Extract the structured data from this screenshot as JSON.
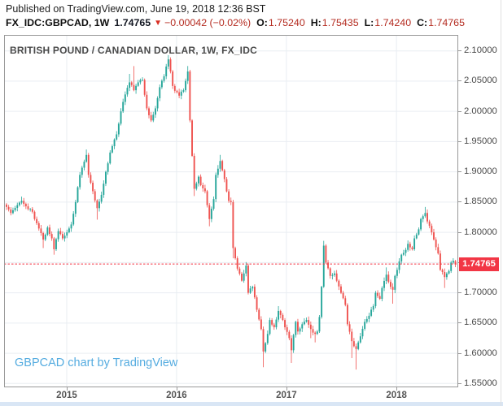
{
  "published_line": "Published on TradingView.com, June 19, 2018 12:36 BST",
  "header": {
    "symbol": "FX_IDC:GBPCAD, 1W",
    "price": "1.74765",
    "direction": "down",
    "change": "−0.00042 (−0.02%)",
    "open": {
      "label": "O:",
      "value": "1.75240"
    },
    "high": {
      "label": "H:",
      "value": "1.75435"
    },
    "low": {
      "label": "L:",
      "value": "1.74240"
    },
    "close": {
      "label": "C:",
      "value": "1.74765"
    }
  },
  "chart": {
    "title": "BRITISH POUND / CANADIAN DOLLAR, 1W, FX_IDC",
    "watermark": "GBPCAD chart by TradingView",
    "price_label": "1.74765",
    "colors": {
      "up": "#26a69a",
      "down": "#ef5350",
      "grid": "#e9edf2",
      "frame": "#999999",
      "price_line": "#f23645",
      "axis_text": "#4a4a4a",
      "watermark": "#55ace0"
    }
  },
  "chart_data": {
    "type": "candlestick",
    "title": "BRITISH POUND / CANADIAN DOLLAR, 1W, FX_IDC",
    "symbol": "GBPCAD",
    "timeframe": "1W",
    "x_range": {
      "start": "2014-06",
      "end": "2018-06",
      "weeks": 209
    },
    "x_ticks": [
      {
        "label": "2015",
        "week": 27.9
      },
      {
        "label": "2016",
        "week": 78.8
      },
      {
        "label": "2017",
        "week": 129.7
      },
      {
        "label": "2018",
        "week": 180.7
      }
    ],
    "y_ticks": [
      {
        "label": "2.10000",
        "value": 2.1
      },
      {
        "label": "2.05000",
        "value": 2.05
      },
      {
        "label": "2.00000",
        "value": 2.0
      },
      {
        "label": "1.95000",
        "value": 1.95
      },
      {
        "label": "1.90000",
        "value": 1.9
      },
      {
        "label": "1.85000",
        "value": 1.85
      },
      {
        "label": "1.80000",
        "value": 1.8
      },
      {
        "label": "1.75000",
        "value": 1.75
      },
      {
        "label": "1.70000",
        "value": 1.7
      },
      {
        "label": "1.65000",
        "value": 1.65
      },
      {
        "label": "1.60000",
        "value": 1.6
      },
      {
        "label": "1.55000",
        "value": 1.55
      }
    ],
    "ylim": [
      1.544,
      2.126
    ],
    "grid": true,
    "current_price": 1.74765,
    "current_price_label": "1.74765",
    "last_candle": {
      "open": 1.7524,
      "high": 1.75435,
      "low": 1.7424,
      "close": 1.74765
    },
    "anchors_legend": "weekly close waypoints read from chart: [week_index, close, wick_low, wick_high]",
    "anchors": [
      [
        0,
        1.842,
        null,
        null
      ],
      [
        2,
        1.832,
        null,
        null
      ],
      [
        5,
        1.845,
        null,
        null
      ],
      [
        7,
        1.852,
        null,
        1.859
      ],
      [
        9,
        1.843,
        null,
        null
      ],
      [
        12,
        1.834,
        null,
        null
      ],
      [
        14,
        1.815,
        null,
        null
      ],
      [
        17,
        1.788,
        1.774,
        null
      ],
      [
        19,
        1.808,
        null,
        null
      ],
      [
        21,
        1.79,
        null,
        null
      ],
      [
        22,
        1.772,
        1.763,
        null
      ],
      [
        24,
        1.802,
        null,
        null
      ],
      [
        26,
        1.79,
        null,
        null
      ],
      [
        28,
        1.8,
        null,
        null
      ],
      [
        30,
        1.813,
        null,
        null
      ],
      [
        32,
        1.85,
        null,
        null
      ],
      [
        34,
        1.895,
        null,
        null
      ],
      [
        37,
        1.928,
        null,
        1.937
      ],
      [
        38,
        1.895,
        null,
        null
      ],
      [
        40,
        1.868,
        null,
        null
      ],
      [
        42,
        1.84,
        1.821,
        null
      ],
      [
        44,
        1.862,
        null,
        null
      ],
      [
        46,
        1.9,
        null,
        null
      ],
      [
        48,
        1.932,
        null,
        null
      ],
      [
        51,
        1.962,
        null,
        null
      ],
      [
        53,
        2.0,
        null,
        null
      ],
      [
        55,
        2.028,
        null,
        null
      ],
      [
        57,
        2.048,
        null,
        2.062
      ],
      [
        59,
        2.035,
        null,
        2.075
      ],
      [
        61,
        2.048,
        null,
        null
      ],
      [
        63,
        2.052,
        null,
        null
      ],
      [
        65,
        2.005,
        null,
        null
      ],
      [
        67,
        1.985,
        null,
        null
      ],
      [
        69,
        2.005,
        null,
        null
      ],
      [
        71,
        2.04,
        null,
        null
      ],
      [
        73,
        2.058,
        null,
        null
      ],
      [
        75,
        2.086,
        null,
        2.093
      ],
      [
        77,
        2.042,
        null,
        null
      ],
      [
        78,
        2.034,
        null,
        null
      ],
      [
        80,
        2.026,
        null,
        null
      ],
      [
        82,
        2.035,
        null,
        null
      ],
      [
        84,
        2.066,
        null,
        2.075
      ],
      [
        85,
        1.985,
        null,
        null
      ],
      [
        87,
        1.872,
        1.86,
        null
      ],
      [
        89,
        1.892,
        null,
        null
      ],
      [
        90,
        1.878,
        null,
        null
      ],
      [
        92,
        1.868,
        null,
        null
      ],
      [
        94,
        1.822,
        1.81,
        null
      ],
      [
        96,
        1.855,
        null,
        null
      ],
      [
        97,
        1.895,
        null,
        null
      ],
      [
        99,
        1.918,
        null,
        1.928
      ],
      [
        101,
        1.888,
        null,
        null
      ],
      [
        103,
        1.852,
        null,
        null
      ],
      [
        104,
        1.85,
        null,
        null
      ],
      [
        105,
        1.774,
        1.757,
        null
      ],
      [
        107,
        1.74,
        null,
        null
      ],
      [
        109,
        1.72,
        null,
        null
      ],
      [
        111,
        1.745,
        null,
        null
      ],
      [
        112,
        1.7,
        null,
        null
      ],
      [
        114,
        1.71,
        null,
        null
      ],
      [
        116,
        1.672,
        null,
        null
      ],
      [
        118,
        1.64,
        null,
        null
      ],
      [
        119,
        1.603,
        1.577,
        null
      ],
      [
        121,
        1.632,
        null,
        null
      ],
      [
        122,
        1.655,
        null,
        null
      ],
      [
        124,
        1.643,
        null,
        null
      ],
      [
        126,
        1.67,
        null,
        1.678
      ],
      [
        128,
        1.655,
        null,
        null
      ],
      [
        129,
        1.643,
        null,
        null
      ],
      [
        131,
        1.625,
        null,
        null
      ],
      [
        132,
        1.605,
        1.584,
        null
      ],
      [
        134,
        1.652,
        null,
        null
      ],
      [
        135,
        1.636,
        null,
        null
      ],
      [
        137,
        1.648,
        null,
        null
      ],
      [
        139,
        1.655,
        null,
        null
      ],
      [
        141,
        1.64,
        1.625,
        null
      ],
      [
        143,
        1.632,
        1.618,
        null
      ],
      [
        144,
        1.636,
        null,
        null
      ],
      [
        145,
        1.66,
        null,
        null
      ],
      [
        146,
        1.71,
        null,
        null
      ],
      [
        147,
        1.778,
        null,
        1.786
      ],
      [
        148,
        1.75,
        null,
        null
      ],
      [
        150,
        1.728,
        null,
        null
      ],
      [
        152,
        1.732,
        null,
        null
      ],
      [
        153,
        1.72,
        null,
        null
      ],
      [
        155,
        1.7,
        null,
        null
      ],
      [
        157,
        1.68,
        null,
        null
      ],
      [
        158,
        1.648,
        null,
        null
      ],
      [
        160,
        1.62,
        1.592,
        null
      ],
      [
        162,
        1.607,
        1.573,
        null
      ],
      [
        164,
        1.628,
        null,
        null
      ],
      [
        166,
        1.652,
        null,
        null
      ],
      [
        168,
        1.662,
        null,
        null
      ],
      [
        170,
        1.678,
        null,
        null
      ],
      [
        171,
        1.7,
        null,
        null
      ],
      [
        173,
        1.69,
        null,
        null
      ],
      [
        174,
        1.708,
        null,
        null
      ],
      [
        176,
        1.73,
        null,
        1.742
      ],
      [
        177,
        1.718,
        null,
        null
      ],
      [
        179,
        1.705,
        1.682,
        null
      ],
      [
        180,
        1.728,
        null,
        null
      ],
      [
        182,
        1.752,
        null,
        null
      ],
      [
        183,
        1.763,
        null,
        null
      ],
      [
        185,
        1.771,
        null,
        null
      ],
      [
        186,
        1.781,
        null,
        null
      ],
      [
        188,
        1.772,
        null,
        null
      ],
      [
        189,
        1.79,
        null,
        null
      ],
      [
        191,
        1.805,
        null,
        null
      ],
      [
        192,
        1.822,
        null,
        null
      ],
      [
        194,
        1.832,
        null,
        1.842
      ],
      [
        195,
        1.818,
        null,
        null
      ],
      [
        197,
        1.8,
        null,
        null
      ],
      [
        198,
        1.788,
        null,
        null
      ],
      [
        200,
        1.765,
        null,
        null
      ],
      [
        201,
        1.738,
        null,
        null
      ],
      [
        203,
        1.726,
        1.708,
        null
      ],
      [
        205,
        1.736,
        null,
        null
      ],
      [
        206,
        1.75,
        null,
        null
      ],
      [
        207,
        1.753,
        null,
        null
      ],
      [
        208,
        1.74765,
        null,
        null
      ]
    ]
  }
}
